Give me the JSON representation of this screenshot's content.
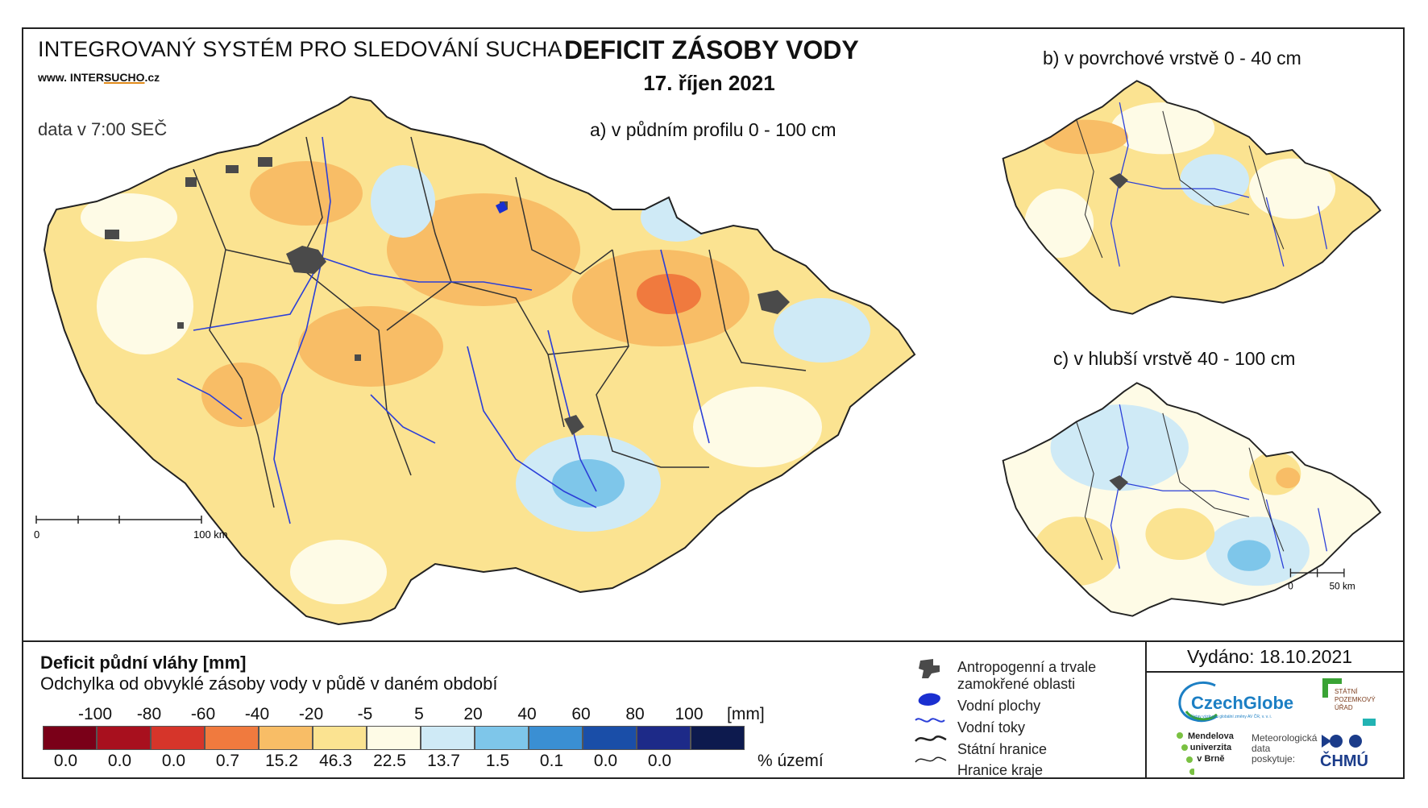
{
  "header": {
    "system_name": "INTEGROVANÝ SYSTÉM PRO SLEDOVÁNÍ SUCHA",
    "web_prefix": "www. INTER",
    "web_underlined": "SUCHO",
    "web_suffix": ".cz",
    "data_time": "data v 7:00 SEČ",
    "title": "DEFICIT ZÁSOBY VODY",
    "date": "17. říjen 2021"
  },
  "maps": {
    "a_caption": "a) v půdním profilu 0 - 100 cm",
    "b_caption": "b) v povrchové vrstvě 0 - 40 cm",
    "c_caption": "c) v hlubší vrstvě 40 - 100 cm",
    "scale_a": {
      "zero": "0",
      "label": "100 km"
    },
    "scale_c": {
      "zero": "0",
      "label": "50 km"
    }
  },
  "legend": {
    "title": "Deficit půdní vláhy  [mm]",
    "subtitle": "Odchylka od obvyklé zásoby vody v půdě v daném období",
    "ticks": [
      "-100",
      "-80",
      "-60",
      "-40",
      "-20",
      "-5",
      "5",
      "20",
      "40",
      "60",
      "80",
      "100"
    ],
    "unit_mm": "[mm]",
    "unit_pct": "% území",
    "classes": [
      {
        "color": "#7a0018",
        "pct": "0.0"
      },
      {
        "color": "#a8101e",
        "pct": "0.0"
      },
      {
        "color": "#d6352a",
        "pct": "0.0"
      },
      {
        "color": "#f07a3e",
        "pct": "0.7"
      },
      {
        "color": "#f8bd66",
        "pct": "15.2"
      },
      {
        "color": "#fbe391",
        "pct": "46.3"
      },
      {
        "color": "#fefbe6",
        "pct": "22.5"
      },
      {
        "color": "#cfeaf6",
        "pct": "13.7"
      },
      {
        "color": "#7ec6ea",
        "pct": "1.5"
      },
      {
        "color": "#3a8fd3",
        "pct": "0.1"
      },
      {
        "color": "#1a4ea8",
        "pct": "0.0"
      },
      {
        "color": "#1d2a88",
        "pct": "0.0"
      },
      {
        "color": "#0d1a4e",
        "pct": ""
      }
    ]
  },
  "symbols": [
    {
      "icon": "urban-area-icon",
      "label": "Antropogenní a trvale"
    },
    {
      "icon": "",
      "label": "zamokřené oblasti"
    },
    {
      "icon": "water-body-icon",
      "label": "Vodní plochy"
    },
    {
      "icon": "river-icon",
      "label": "Vodní toky"
    },
    {
      "icon": "state-border-icon",
      "label": "Státní hranice"
    },
    {
      "icon": "region-border-icon",
      "label": "Hranice kraje"
    }
  ],
  "footer": {
    "issued": "Vydáno: 18.10.2021",
    "czechglobe": "CzechGlobe",
    "czechglobe_sub": "Ústav výzkumu globální změny AV ČR, v. v. i.",
    "spu_line1": "STÁTNÍ",
    "spu_line2": "POZEMKOVÝ",
    "spu_line3": "ÚŘAD",
    "mendel_line1": "Mendelova",
    "mendel_line2": "univerzita",
    "mendel_line3": "v Brně",
    "chmu_line1": "Meteorologická",
    "chmu_line2": "data",
    "chmu_line3": "poskytuje:",
    "chmu": "ČHMÚ"
  },
  "colors": {
    "urban": "#4a4a4a",
    "river": "#2b3fd8",
    "border": "#222222"
  }
}
